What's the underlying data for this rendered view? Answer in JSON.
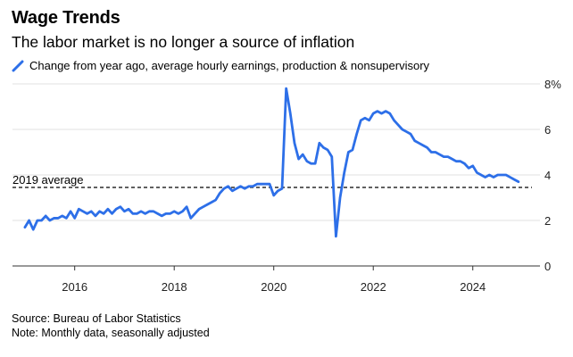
{
  "header": {
    "title": "Wage Trends",
    "subtitle": "The labor market is no longer a source of inflation"
  },
  "legend": {
    "label": "Change from year ago, average hourly earnings, production & nonsupervisory",
    "color": "#2d6fe8"
  },
  "footer": {
    "source": "Source: Bureau of Labor Statistics",
    "note": "Note: Monthly data, seasonally adjusted"
  },
  "chart_data": {
    "type": "line",
    "title": "Wage Trends",
    "subtitle": "The labor market is no longer a source of inflation",
    "xlabel": "",
    "ylabel": "",
    "xlim": [
      2014.75,
      2025.35
    ],
    "ylim": [
      0,
      8
    ],
    "y_ticks": [
      0,
      2,
      4,
      6,
      8
    ],
    "y_tick_labels": [
      "0",
      "2",
      "4",
      "6",
      "8%"
    ],
    "x_ticks": [
      2016,
      2018,
      2020,
      2022,
      2024
    ],
    "x_tick_labels": [
      "2016",
      "2018",
      "2020",
      "2022",
      "2024"
    ],
    "grid": "horizontal",
    "reference_line": {
      "label": "2019 average",
      "value": 3.45
    },
    "series": [
      {
        "name": "Change from year ago, average hourly earnings, production & nonsupervisory",
        "color": "#2d6fe8",
        "x": [
          2015.0,
          2015.083,
          2015.167,
          2015.25,
          2015.333,
          2015.417,
          2015.5,
          2015.583,
          2015.667,
          2015.75,
          2015.833,
          2015.917,
          2016.0,
          2016.083,
          2016.167,
          2016.25,
          2016.333,
          2016.417,
          2016.5,
          2016.583,
          2016.667,
          2016.75,
          2016.833,
          2016.917,
          2017.0,
          2017.083,
          2017.167,
          2017.25,
          2017.333,
          2017.417,
          2017.5,
          2017.583,
          2017.667,
          2017.75,
          2017.833,
          2017.917,
          2018.0,
          2018.083,
          2018.167,
          2018.25,
          2018.333,
          2018.417,
          2018.5,
          2018.583,
          2018.667,
          2018.75,
          2018.833,
          2018.917,
          2019.0,
          2019.083,
          2019.167,
          2019.25,
          2019.333,
          2019.417,
          2019.5,
          2019.583,
          2019.667,
          2019.75,
          2019.833,
          2019.917,
          2020.0,
          2020.083,
          2020.167,
          2020.25,
          2020.333,
          2020.417,
          2020.5,
          2020.583,
          2020.667,
          2020.75,
          2020.833,
          2020.917,
          2021.0,
          2021.083,
          2021.167,
          2021.25,
          2021.333,
          2021.417,
          2021.5,
          2021.583,
          2021.667,
          2021.75,
          2021.833,
          2021.917,
          2022.0,
          2022.083,
          2022.167,
          2022.25,
          2022.333,
          2022.417,
          2022.5,
          2022.583,
          2022.667,
          2022.75,
          2022.833,
          2022.917,
          2023.0,
          2023.083,
          2023.167,
          2023.25,
          2023.333,
          2023.417,
          2023.5,
          2023.583,
          2023.667,
          2023.75,
          2023.833,
          2023.917,
          2024.0,
          2024.083,
          2024.167,
          2024.25,
          2024.333,
          2024.417,
          2024.5,
          2024.583,
          2024.667,
          2024.75,
          2024.833,
          2024.917
        ],
        "values": [
          1.7,
          2.0,
          1.6,
          2.0,
          2.0,
          2.2,
          2.0,
          2.1,
          2.1,
          2.2,
          2.1,
          2.4,
          2.1,
          2.5,
          2.4,
          2.3,
          2.4,
          2.2,
          2.4,
          2.3,
          2.5,
          2.3,
          2.5,
          2.6,
          2.4,
          2.5,
          2.3,
          2.3,
          2.4,
          2.3,
          2.4,
          2.4,
          2.3,
          2.2,
          2.3,
          2.3,
          2.4,
          2.3,
          2.4,
          2.6,
          2.1,
          2.3,
          2.5,
          2.6,
          2.7,
          2.8,
          2.9,
          3.2,
          3.4,
          3.5,
          3.3,
          3.4,
          3.5,
          3.4,
          3.5,
          3.5,
          3.6,
          3.6,
          3.6,
          3.6,
          3.1,
          3.3,
          3.4,
          7.8,
          6.7,
          5.4,
          4.7,
          4.9,
          4.6,
          4.5,
          4.5,
          5.4,
          5.2,
          5.1,
          4.8,
          1.3,
          3.0,
          4.1,
          5.0,
          5.1,
          5.8,
          6.4,
          6.5,
          6.4,
          6.7,
          6.8,
          6.7,
          6.8,
          6.7,
          6.4,
          6.2,
          6.0,
          5.9,
          5.8,
          5.5,
          5.4,
          5.3,
          5.2,
          5.0,
          5.0,
          4.9,
          4.8,
          4.8,
          4.7,
          4.6,
          4.6,
          4.5,
          4.3,
          4.4,
          4.1,
          4.0,
          3.9,
          4.0,
          3.9,
          4.0,
          4.0,
          4.0,
          3.9,
          3.8,
          3.7
        ]
      }
    ]
  }
}
